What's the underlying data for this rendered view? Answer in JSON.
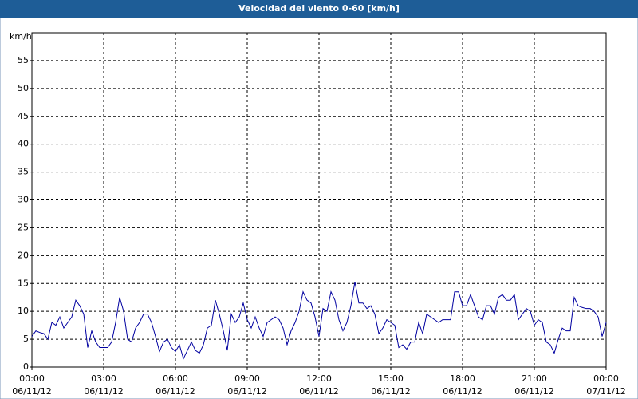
{
  "chart_data": {
    "type": "line",
    "title": "Velocidad del viento 0-60 [km/h]",
    "y_label": "km/h",
    "x": [
      0,
      10,
      20,
      30,
      40,
      50,
      60,
      70,
      80,
      90,
      100,
      110,
      120,
      130,
      140,
      150,
      160,
      170,
      180,
      190,
      200,
      210,
      220,
      230,
      240,
      250,
      260,
      270,
      280,
      290,
      300,
      310,
      320,
      330,
      340,
      350,
      360,
      370,
      380,
      390,
      400,
      410,
      420,
      430,
      440,
      450,
      460,
      470,
      480,
      490,
      500,
      510,
      520,
      530,
      540,
      550,
      560,
      570,
      580,
      590,
      600,
      610,
      620,
      630,
      640,
      650,
      660,
      670,
      680,
      690,
      700,
      710,
      720,
      730,
      740,
      750,
      760,
      770,
      780,
      790,
      800,
      810,
      820,
      830,
      840,
      850,
      860,
      870,
      880,
      890,
      900,
      910,
      920,
      930,
      940,
      950,
      960,
      970,
      980,
      990,
      1000,
      1010,
      1020,
      1030,
      1040,
      1050,
      1060,
      1070,
      1080,
      1090,
      1100,
      1110,
      1120,
      1130,
      1140,
      1150,
      1160,
      1170,
      1180,
      1190,
      1200,
      1210,
      1220,
      1230,
      1240,
      1250,
      1260,
      1270,
      1280,
      1290,
      1300,
      1310,
      1320,
      1330,
      1340,
      1350,
      1360,
      1370,
      1380,
      1390,
      1400,
      1410,
      1420,
      1430,
      1440
    ],
    "series": [
      {
        "color": "#0000a0",
        "values": [
          5.5,
          6.5,
          6.2,
          6,
          5,
          8,
          7.5,
          9,
          7,
          8,
          9,
          12,
          11,
          9.5,
          3.5,
          6.5,
          4.5,
          3.5,
          3.5,
          3.5,
          4.5,
          8,
          12.5,
          10,
          5,
          4.5,
          7,
          8,
          9.5,
          9.5,
          8,
          5.5,
          2.8,
          4.5,
          5,
          3.5,
          2.8,
          4,
          1.5,
          3,
          4.5,
          3,
          2.5,
          4,
          7,
          7.5,
          12,
          9.5,
          6.5,
          3,
          9.5,
          8,
          9,
          11.5,
          8.5,
          7,
          9,
          7,
          5.5,
          8,
          8.5,
          9,
          8.5,
          7,
          4,
          6.5,
          8,
          10,
          13.5,
          12,
          11.5,
          9,
          5.5,
          10.5,
          10,
          13.5,
          12,
          8.5,
          6.5,
          8,
          11,
          15.3,
          11.5,
          11.5,
          10.5,
          11,
          9.5,
          6,
          7,
          8.5,
          8,
          7.5,
          3.5,
          4,
          3.2,
          4.5,
          4.5,
          8,
          6,
          9.5,
          9,
          8.5,
          8,
          8.5,
          8.5,
          8.5,
          13.5,
          13.5,
          11,
          11,
          13,
          11,
          9,
          8.5,
          11,
          11,
          9.5,
          12.5,
          13,
          12,
          12,
          13,
          8.5,
          9.5,
          10.5,
          10,
          7.5,
          8.5,
          8,
          4.5,
          4,
          2.5,
          5,
          7,
          6.5,
          6.5,
          12.5,
          11,
          10.7,
          10.5,
          10.5,
          10,
          9,
          5.5,
          8
        ]
      }
    ],
    "xlim": [
      0,
      1440
    ],
    "xticks": [
      {
        "value": 0,
        "label": "00:00"
      },
      {
        "value": 180,
        "label": "03:00"
      },
      {
        "value": 360,
        "label": "06:00"
      },
      {
        "value": 540,
        "label": "09:00"
      },
      {
        "value": 720,
        "label": "12:00"
      },
      {
        "value": 900,
        "label": "15:00"
      },
      {
        "value": 1080,
        "label": "18:00"
      },
      {
        "value": 1260,
        "label": "21:00"
      },
      {
        "value": 1440,
        "label": "00:00"
      }
    ],
    "xtick_dates": [
      "06/11/12",
      "06/11/12",
      "06/11/12",
      "06/11/12",
      "06/11/12",
      "06/11/12",
      "06/11/12",
      "06/11/12",
      "07/11/12"
    ],
    "ylim": [
      0,
      60
    ],
    "yticks": [
      0,
      5,
      10,
      15,
      20,
      25,
      30,
      35,
      40,
      45,
      50,
      55
    ],
    "grid": true
  }
}
